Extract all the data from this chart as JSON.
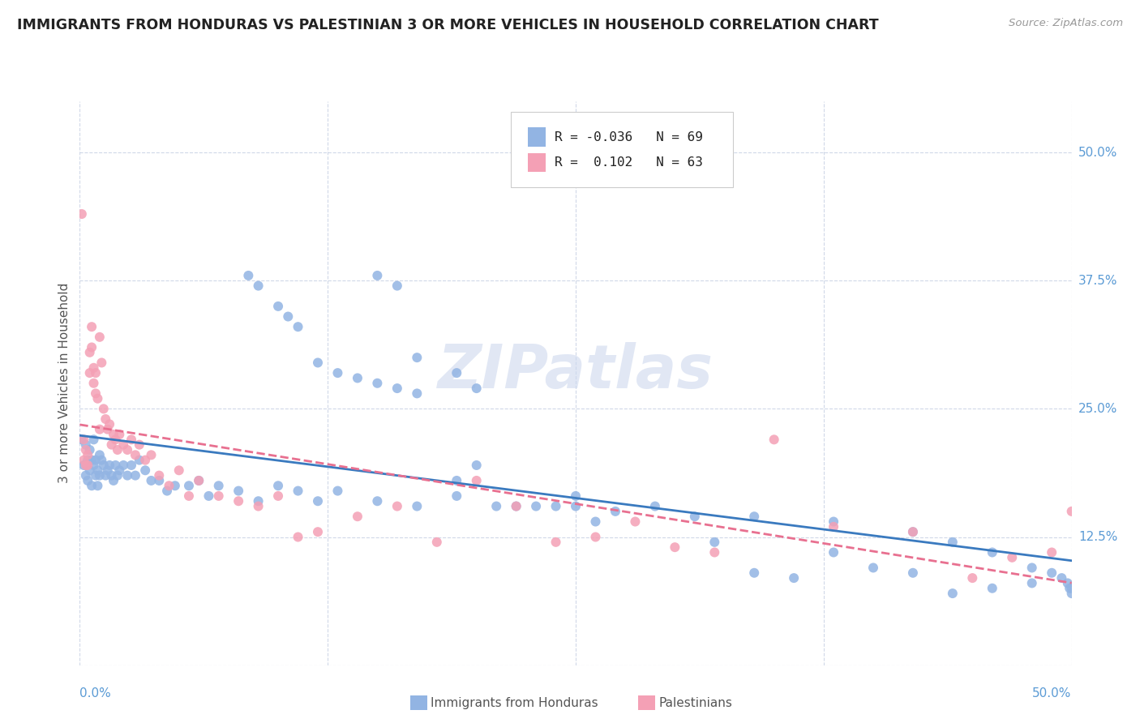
{
  "title": "IMMIGRANTS FROM HONDURAS VS PALESTINIAN 3 OR MORE VEHICLES IN HOUSEHOLD CORRELATION CHART",
  "source": "Source: ZipAtlas.com",
  "ylabel": "3 or more Vehicles in Household",
  "ytick_vals": [
    0.0,
    0.125,
    0.25,
    0.375,
    0.5
  ],
  "ytick_labels": [
    "",
    "12.5%",
    "25.0%",
    "37.5%",
    "50.0%"
  ],
  "xmin": 0.0,
  "xmax": 0.5,
  "ymin": 0.0,
  "ymax": 0.55,
  "blue_scatter_color": "#92b4e3",
  "pink_scatter_color": "#f4a0b5",
  "blue_line_color": "#3a7abf",
  "pink_line_color": "#e87090",
  "grid_color": "#d0d8e8",
  "background_color": "#ffffff",
  "title_color": "#222222",
  "tick_label_color": "#5b9bd5",
  "watermark": "ZIPatlas",
  "honduras_x": [
    0.001,
    0.002,
    0.003,
    0.003,
    0.004,
    0.004,
    0.005,
    0.005,
    0.006,
    0.006,
    0.007,
    0.007,
    0.008,
    0.008,
    0.009,
    0.009,
    0.01,
    0.01,
    0.011,
    0.012,
    0.013,
    0.014,
    0.015,
    0.016,
    0.017,
    0.018,
    0.019,
    0.02,
    0.022,
    0.024,
    0.026,
    0.028,
    0.03,
    0.033,
    0.036,
    0.04,
    0.044,
    0.048,
    0.055,
    0.06,
    0.065,
    0.07,
    0.08,
    0.09,
    0.1,
    0.11,
    0.12,
    0.13,
    0.15,
    0.17,
    0.19,
    0.21,
    0.23,
    0.25,
    0.27,
    0.29,
    0.31,
    0.34,
    0.38,
    0.42,
    0.44,
    0.46,
    0.48,
    0.49,
    0.495,
    0.498,
    0.499,
    0.5,
    0.5
  ],
  "honduras_y": [
    0.22,
    0.195,
    0.185,
    0.215,
    0.2,
    0.18,
    0.21,
    0.19,
    0.2,
    0.175,
    0.22,
    0.195,
    0.185,
    0.2,
    0.19,
    0.175,
    0.205,
    0.185,
    0.2,
    0.195,
    0.185,
    0.19,
    0.195,
    0.185,
    0.18,
    0.195,
    0.185,
    0.19,
    0.195,
    0.185,
    0.195,
    0.185,
    0.2,
    0.19,
    0.18,
    0.18,
    0.17,
    0.175,
    0.175,
    0.18,
    0.165,
    0.175,
    0.17,
    0.16,
    0.175,
    0.17,
    0.16,
    0.17,
    0.16,
    0.155,
    0.165,
    0.155,
    0.155,
    0.165,
    0.15,
    0.155,
    0.145,
    0.145,
    0.14,
    0.13,
    0.12,
    0.11,
    0.095,
    0.09,
    0.085,
    0.08,
    0.075,
    0.075,
    0.07
  ],
  "honduras_y_extra": [
    0.38,
    0.37,
    0.35,
    0.34,
    0.33,
    0.295,
    0.285,
    0.28,
    0.275,
    0.27,
    0.265,
    0.38,
    0.37,
    0.3,
    0.285,
    0.27,
    0.18,
    0.195,
    0.155,
    0.155,
    0.155,
    0.14,
    0.12,
    0.09,
    0.085,
    0.11,
    0.095,
    0.09,
    0.07,
    0.075,
    0.08
  ],
  "honduras_x_extra": [
    0.085,
    0.09,
    0.1,
    0.105,
    0.11,
    0.12,
    0.13,
    0.14,
    0.15,
    0.16,
    0.17,
    0.15,
    0.16,
    0.17,
    0.19,
    0.2,
    0.19,
    0.2,
    0.22,
    0.24,
    0.25,
    0.26,
    0.32,
    0.34,
    0.36,
    0.38,
    0.4,
    0.42,
    0.44,
    0.46,
    0.48
  ],
  "palestinian_x": [
    0.001,
    0.002,
    0.002,
    0.003,
    0.003,
    0.004,
    0.004,
    0.005,
    0.005,
    0.006,
    0.006,
    0.007,
    0.007,
    0.008,
    0.008,
    0.009,
    0.01,
    0.01,
    0.011,
    0.012,
    0.013,
    0.014,
    0.015,
    0.016,
    0.017,
    0.018,
    0.019,
    0.02,
    0.022,
    0.024,
    0.026,
    0.028,
    0.03,
    0.033,
    0.036,
    0.04,
    0.045,
    0.05,
    0.055,
    0.06,
    0.07,
    0.08,
    0.09,
    0.1,
    0.11,
    0.12,
    0.14,
    0.16,
    0.18,
    0.2,
    0.22,
    0.24,
    0.26,
    0.28,
    0.3,
    0.32,
    0.35,
    0.38,
    0.42,
    0.45,
    0.47,
    0.49,
    0.5
  ],
  "palestinian_y": [
    0.44,
    0.2,
    0.22,
    0.195,
    0.21,
    0.205,
    0.195,
    0.305,
    0.285,
    0.33,
    0.31,
    0.29,
    0.275,
    0.265,
    0.285,
    0.26,
    0.32,
    0.23,
    0.295,
    0.25,
    0.24,
    0.23,
    0.235,
    0.215,
    0.225,
    0.22,
    0.21,
    0.225,
    0.215,
    0.21,
    0.22,
    0.205,
    0.215,
    0.2,
    0.205,
    0.185,
    0.175,
    0.19,
    0.165,
    0.18,
    0.165,
    0.16,
    0.155,
    0.165,
    0.125,
    0.13,
    0.145,
    0.155,
    0.12,
    0.18,
    0.155,
    0.12,
    0.125,
    0.14,
    0.115,
    0.11,
    0.22,
    0.135,
    0.13,
    0.085,
    0.105,
    0.11,
    0.15
  ]
}
